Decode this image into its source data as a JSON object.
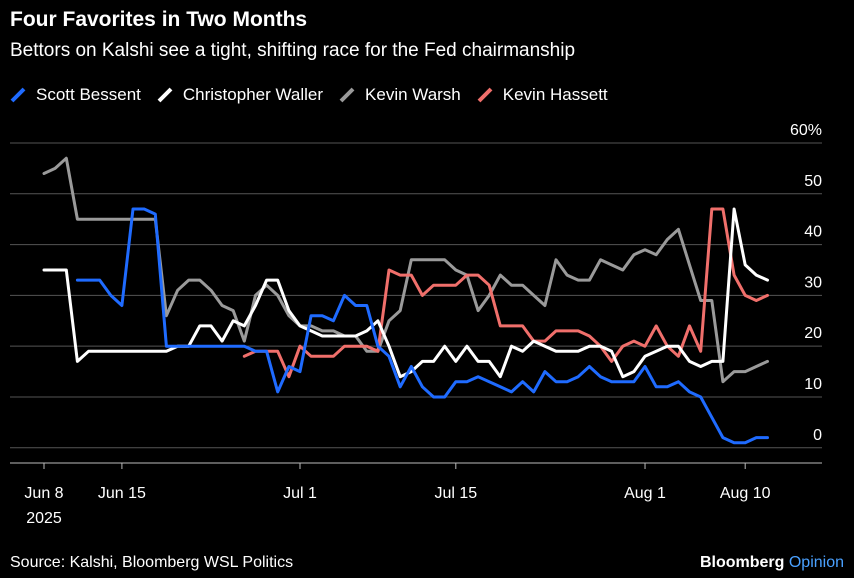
{
  "title": "Four Favorites in Two Months",
  "subtitle": "Bettors on Kalshi see a tight, shifting race for the Fed chairmanship",
  "source": "Source: Kalshi, Bloomberg WSL Politics",
  "brand": {
    "name": "Bloomberg",
    "accent": "Opinion"
  },
  "chart_data": {
    "type": "line",
    "title": "Four Favorites in Two Months",
    "subtitle": "Bettors on Kalshi see a tight, shifting race for the Fed chairmanship",
    "xlabel": "",
    "ylabel": "",
    "x_start": "2025-06-08",
    "x_end": "2025-08-12",
    "x_ticks": [
      {
        "date": "2025-06-08",
        "label": "Jun 8",
        "sublabel": "2025"
      },
      {
        "date": "2025-06-15",
        "label": "Jun 15"
      },
      {
        "date": "2025-07-01",
        "label": "Jul 1"
      },
      {
        "date": "2025-07-15",
        "label": "Jul 15"
      },
      {
        "date": "2025-08-01",
        "label": "Aug 1"
      },
      {
        "date": "2025-08-10",
        "label": "Aug 10"
      }
    ],
    "ylim": [
      -3,
      60
    ],
    "y_ticks": [
      {
        "value": 0,
        "label": "0"
      },
      {
        "value": 10,
        "label": "10"
      },
      {
        "value": 20,
        "label": "20"
      },
      {
        "value": 30,
        "label": "30"
      },
      {
        "value": 40,
        "label": "40"
      },
      {
        "value": 50,
        "label": "50"
      },
      {
        "value": 60,
        "label": "60%"
      }
    ],
    "grid": true,
    "legend_position": "top-left",
    "series": [
      {
        "name": "Scott Bessent",
        "color": "#1f6bff",
        "points": [
          [
            "2025-06-11",
            33
          ],
          [
            "2025-06-12",
            33
          ],
          [
            "2025-06-13",
            33
          ],
          [
            "2025-06-14",
            30
          ],
          [
            "2025-06-15",
            28
          ],
          [
            "2025-06-16",
            47
          ],
          [
            "2025-06-17",
            47
          ],
          [
            "2025-06-18",
            46
          ],
          [
            "2025-06-19",
            20
          ],
          [
            "2025-06-20",
            20
          ],
          [
            "2025-06-21",
            20
          ],
          [
            "2025-06-22",
            20
          ],
          [
            "2025-06-23",
            20
          ],
          [
            "2025-06-24",
            20
          ],
          [
            "2025-06-25",
            20
          ],
          [
            "2025-06-26",
            20
          ],
          [
            "2025-06-27",
            19
          ],
          [
            "2025-06-28",
            19
          ],
          [
            "2025-06-29",
            11
          ],
          [
            "2025-06-30",
            16
          ],
          [
            "2025-07-01",
            15
          ],
          [
            "2025-07-02",
            26
          ],
          [
            "2025-07-03",
            26
          ],
          [
            "2025-07-04",
            25
          ],
          [
            "2025-07-05",
            30
          ],
          [
            "2025-07-06",
            28
          ],
          [
            "2025-07-07",
            28
          ],
          [
            "2025-07-08",
            20
          ],
          [
            "2025-07-09",
            18
          ],
          [
            "2025-07-10",
            12
          ],
          [
            "2025-07-11",
            16
          ],
          [
            "2025-07-12",
            12
          ],
          [
            "2025-07-13",
            10
          ],
          [
            "2025-07-14",
            10
          ],
          [
            "2025-07-15",
            13
          ],
          [
            "2025-07-16",
            13
          ],
          [
            "2025-07-17",
            14
          ],
          [
            "2025-07-18",
            13
          ],
          [
            "2025-07-19",
            12
          ],
          [
            "2025-07-20",
            11
          ],
          [
            "2025-07-21",
            13
          ],
          [
            "2025-07-22",
            11
          ],
          [
            "2025-07-23",
            15
          ],
          [
            "2025-07-24",
            13
          ],
          [
            "2025-07-25",
            13
          ],
          [
            "2025-07-26",
            14
          ],
          [
            "2025-07-27",
            16
          ],
          [
            "2025-07-28",
            14
          ],
          [
            "2025-07-29",
            13
          ],
          [
            "2025-07-30",
            13
          ],
          [
            "2025-07-31",
            13
          ],
          [
            "2025-08-01",
            16
          ],
          [
            "2025-08-02",
            12
          ],
          [
            "2025-08-03",
            12
          ],
          [
            "2025-08-04",
            13
          ],
          [
            "2025-08-05",
            11
          ],
          [
            "2025-08-06",
            10
          ],
          [
            "2025-08-07",
            6
          ],
          [
            "2025-08-08",
            2
          ],
          [
            "2025-08-09",
            1
          ],
          [
            "2025-08-10",
            1
          ],
          [
            "2025-08-11",
            2
          ],
          [
            "2025-08-12",
            2
          ]
        ]
      },
      {
        "name": "Christopher Waller",
        "color": "#ffffff",
        "points": [
          [
            "2025-06-08",
            35
          ],
          [
            "2025-06-09",
            35
          ],
          [
            "2025-06-10",
            35
          ],
          [
            "2025-06-11",
            17
          ],
          [
            "2025-06-12",
            19
          ],
          [
            "2025-06-13",
            19
          ],
          [
            "2025-06-14",
            19
          ],
          [
            "2025-06-15",
            19
          ],
          [
            "2025-06-16",
            19
          ],
          [
            "2025-06-17",
            19
          ],
          [
            "2025-06-18",
            19
          ],
          [
            "2025-06-19",
            19
          ],
          [
            "2025-06-20",
            20
          ],
          [
            "2025-06-21",
            20
          ],
          [
            "2025-06-22",
            24
          ],
          [
            "2025-06-23",
            24
          ],
          [
            "2025-06-24",
            21
          ],
          [
            "2025-06-25",
            25
          ],
          [
            "2025-06-26",
            24
          ],
          [
            "2025-06-27",
            28
          ],
          [
            "2025-06-28",
            33
          ],
          [
            "2025-06-29",
            33
          ],
          [
            "2025-06-30",
            27
          ],
          [
            "2025-07-01",
            24
          ],
          [
            "2025-07-02",
            23
          ],
          [
            "2025-07-03",
            22
          ],
          [
            "2025-07-04",
            22
          ],
          [
            "2025-07-05",
            22
          ],
          [
            "2025-07-06",
            22
          ],
          [
            "2025-07-07",
            23
          ],
          [
            "2025-07-08",
            25
          ],
          [
            "2025-07-09",
            20
          ],
          [
            "2025-07-10",
            14
          ],
          [
            "2025-07-11",
            15
          ],
          [
            "2025-07-12",
            17
          ],
          [
            "2025-07-13",
            17
          ],
          [
            "2025-07-14",
            20
          ],
          [
            "2025-07-15",
            17
          ],
          [
            "2025-07-16",
            20
          ],
          [
            "2025-07-17",
            17
          ],
          [
            "2025-07-18",
            17
          ],
          [
            "2025-07-19",
            14
          ],
          [
            "2025-07-20",
            20
          ],
          [
            "2025-07-21",
            19
          ],
          [
            "2025-07-22",
            21
          ],
          [
            "2025-07-23",
            20
          ],
          [
            "2025-07-24",
            19
          ],
          [
            "2025-07-25",
            19
          ],
          [
            "2025-07-26",
            19
          ],
          [
            "2025-07-27",
            20
          ],
          [
            "2025-07-28",
            20
          ],
          [
            "2025-07-29",
            19
          ],
          [
            "2025-07-30",
            14
          ],
          [
            "2025-07-31",
            15
          ],
          [
            "2025-08-01",
            18
          ],
          [
            "2025-08-02",
            19
          ],
          [
            "2025-08-03",
            20
          ],
          [
            "2025-08-04",
            20
          ],
          [
            "2025-08-05",
            17
          ],
          [
            "2025-08-06",
            16
          ],
          [
            "2025-08-07",
            17
          ],
          [
            "2025-08-08",
            17
          ],
          [
            "2025-08-09",
            47
          ],
          [
            "2025-08-10",
            36
          ],
          [
            "2025-08-11",
            34
          ],
          [
            "2025-08-12",
            33
          ]
        ]
      },
      {
        "name": "Kevin Warsh",
        "color": "#9a9a9a",
        "points": [
          [
            "2025-06-08",
            54
          ],
          [
            "2025-06-09",
            55
          ],
          [
            "2025-06-10",
            57
          ],
          [
            "2025-06-11",
            45
          ],
          [
            "2025-06-12",
            45
          ],
          [
            "2025-06-13",
            45
          ],
          [
            "2025-06-14",
            45
          ],
          [
            "2025-06-15",
            45
          ],
          [
            "2025-06-16",
            45
          ],
          [
            "2025-06-17",
            45
          ],
          [
            "2025-06-18",
            45
          ],
          [
            "2025-06-19",
            26
          ],
          [
            "2025-06-20",
            31
          ],
          [
            "2025-06-21",
            33
          ],
          [
            "2025-06-22",
            33
          ],
          [
            "2025-06-23",
            31
          ],
          [
            "2025-06-24",
            28
          ],
          [
            "2025-06-25",
            27
          ],
          [
            "2025-06-26",
            21
          ],
          [
            "2025-06-27",
            30
          ],
          [
            "2025-06-28",
            32
          ],
          [
            "2025-06-29",
            30
          ],
          [
            "2025-06-30",
            26
          ],
          [
            "2025-07-01",
            24
          ],
          [
            "2025-07-02",
            24
          ],
          [
            "2025-07-03",
            23
          ],
          [
            "2025-07-04",
            23
          ],
          [
            "2025-07-05",
            22
          ],
          [
            "2025-07-06",
            22
          ],
          [
            "2025-07-07",
            19
          ],
          [
            "2025-07-08",
            19
          ],
          [
            "2025-07-09",
            25
          ],
          [
            "2025-07-10",
            27
          ],
          [
            "2025-07-11",
            37
          ],
          [
            "2025-07-12",
            37
          ],
          [
            "2025-07-13",
            37
          ],
          [
            "2025-07-14",
            37
          ],
          [
            "2025-07-15",
            35
          ],
          [
            "2025-07-16",
            34
          ],
          [
            "2025-07-17",
            27
          ],
          [
            "2025-07-18",
            30
          ],
          [
            "2025-07-19",
            34
          ],
          [
            "2025-07-20",
            32
          ],
          [
            "2025-07-21",
            32
          ],
          [
            "2025-07-22",
            30
          ],
          [
            "2025-07-23",
            28
          ],
          [
            "2025-07-24",
            37
          ],
          [
            "2025-07-25",
            34
          ],
          [
            "2025-07-26",
            33
          ],
          [
            "2025-07-27",
            33
          ],
          [
            "2025-07-28",
            37
          ],
          [
            "2025-07-29",
            36
          ],
          [
            "2025-07-30",
            35
          ],
          [
            "2025-07-31",
            38
          ],
          [
            "2025-08-01",
            39
          ],
          [
            "2025-08-02",
            38
          ],
          [
            "2025-08-03",
            41
          ],
          [
            "2025-08-04",
            43
          ],
          [
            "2025-08-05",
            36
          ],
          [
            "2025-08-06",
            29
          ],
          [
            "2025-08-07",
            29
          ],
          [
            "2025-08-08",
            13
          ],
          [
            "2025-08-09",
            15
          ],
          [
            "2025-08-10",
            15
          ],
          [
            "2025-08-11",
            16
          ],
          [
            "2025-08-12",
            17
          ]
        ]
      },
      {
        "name": "Kevin Hassett",
        "color": "#f06f6b",
        "points": [
          [
            "2025-06-26",
            18
          ],
          [
            "2025-06-27",
            19
          ],
          [
            "2025-06-28",
            19
          ],
          [
            "2025-06-29",
            19
          ],
          [
            "2025-06-30",
            14
          ],
          [
            "2025-07-01",
            20
          ],
          [
            "2025-07-02",
            18
          ],
          [
            "2025-07-03",
            18
          ],
          [
            "2025-07-04",
            18
          ],
          [
            "2025-07-05",
            20
          ],
          [
            "2025-07-06",
            20
          ],
          [
            "2025-07-07",
            20
          ],
          [
            "2025-07-08",
            19
          ],
          [
            "2025-07-09",
            35
          ],
          [
            "2025-07-10",
            34
          ],
          [
            "2025-07-11",
            34
          ],
          [
            "2025-07-12",
            30
          ],
          [
            "2025-07-13",
            32
          ],
          [
            "2025-07-14",
            32
          ],
          [
            "2025-07-15",
            32
          ],
          [
            "2025-07-16",
            34
          ],
          [
            "2025-07-17",
            34
          ],
          [
            "2025-07-18",
            32
          ],
          [
            "2025-07-19",
            24
          ],
          [
            "2025-07-20",
            24
          ],
          [
            "2025-07-21",
            24
          ],
          [
            "2025-07-22",
            21
          ],
          [
            "2025-07-23",
            21
          ],
          [
            "2025-07-24",
            23
          ],
          [
            "2025-07-25",
            23
          ],
          [
            "2025-07-26",
            23
          ],
          [
            "2025-07-27",
            22
          ],
          [
            "2025-07-28",
            20
          ],
          [
            "2025-07-29",
            17
          ],
          [
            "2025-07-30",
            20
          ],
          [
            "2025-07-31",
            21
          ],
          [
            "2025-08-01",
            20
          ],
          [
            "2025-08-02",
            24
          ],
          [
            "2025-08-03",
            20
          ],
          [
            "2025-08-04",
            18
          ],
          [
            "2025-08-05",
            24
          ],
          [
            "2025-08-06",
            19
          ],
          [
            "2025-08-07",
            47
          ],
          [
            "2025-08-08",
            47
          ],
          [
            "2025-08-09",
            34
          ],
          [
            "2025-08-10",
            30
          ],
          [
            "2025-08-11",
            29
          ],
          [
            "2025-08-12",
            30
          ]
        ]
      }
    ]
  }
}
